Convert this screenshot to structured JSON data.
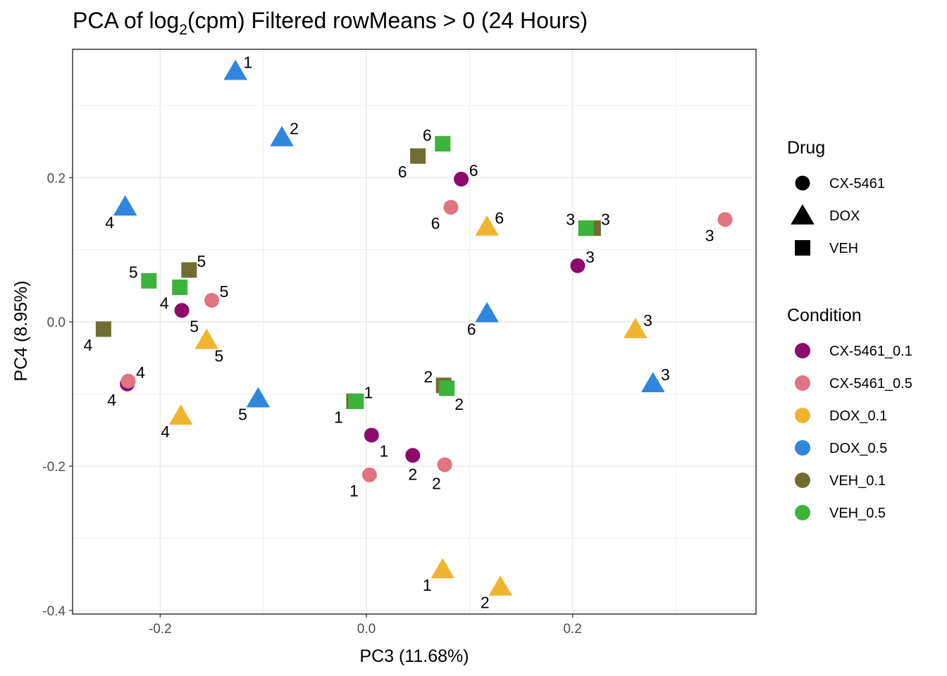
{
  "chart_data": {
    "type": "scatter",
    "title_main": "PCA of log",
    "title_sub": "2",
    "title_rest": "(cpm) Filtered rowMeans > 0 (24 Hours)",
    "xlabel": "PC3 (11.68%)",
    "ylabel": "PC4 (8.95%)",
    "xlim": [
      -0.285,
      0.378
    ],
    "ylim": [
      -0.405,
      0.378
    ],
    "x_ticks": [
      -0.2,
      0.0,
      0.2
    ],
    "x_tick_labels": [
      "-0.2",
      "0.0",
      "0.2"
    ],
    "y_ticks": [
      -0.4,
      -0.2,
      0.0,
      0.2
    ],
    "y_tick_labels": [
      "-0.4",
      "-0.2",
      "0.0",
      "0.2"
    ],
    "grid": true,
    "legend_placement": "right",
    "legend_drug": {
      "title": "Drug",
      "items": [
        {
          "label": "CX-5461",
          "shape": "circle"
        },
        {
          "label": "DOX",
          "shape": "triangle"
        },
        {
          "label": "VEH",
          "shape": "square"
        }
      ]
    },
    "legend_condition": {
      "title": "Condition",
      "items": [
        {
          "label": "CX-5461_0.1",
          "color": "#8B0A6B"
        },
        {
          "label": "CX-5461_0.5",
          "color": "#E07480"
        },
        {
          "label": "DOX_0.1",
          "color": "#F0B530"
        },
        {
          "label": "DOX_0.5",
          "color": "#2F86DC"
        },
        {
          "label": "VEH_0.1",
          "color": "#6E6E30"
        },
        {
          "label": "VEH_0.5",
          "color": "#3CB43C"
        }
      ]
    },
    "points": [
      {
        "x": -0.127,
        "y": 0.348,
        "shape": "triangle",
        "color": "#2F86DC",
        "label": "1",
        "lx": 0.012,
        "ly": 0.012
      },
      {
        "x": -0.082,
        "y": 0.256,
        "shape": "triangle",
        "color": "#2F86DC",
        "label": "2",
        "lx": 0.012,
        "ly": 0.012
      },
      {
        "x": -0.234,
        "y": 0.16,
        "shape": "triangle",
        "color": "#2F86DC",
        "label": "4",
        "lx": -0.015,
        "ly": -0.022
      },
      {
        "x": 0.117,
        "y": 0.012,
        "shape": "triangle",
        "color": "#2F86DC",
        "label": "6",
        "lx": -0.015,
        "ly": -0.022
      },
      {
        "x": 0.278,
        "y": -0.085,
        "shape": "triangle",
        "color": "#2F86DC",
        "label": "3",
        "lx": 0.012,
        "ly": 0.012
      },
      {
        "x": -0.105,
        "y": -0.106,
        "shape": "triangle",
        "color": "#2F86DC",
        "label": "5",
        "lx": -0.015,
        "ly": -0.022
      },
      {
        "x": 0.117,
        "y": 0.132,
        "shape": "triangle",
        "color": "#F0B530",
        "label": "6",
        "lx": 0.012,
        "ly": 0.012
      },
      {
        "x": 0.261,
        "y": -0.01,
        "shape": "triangle",
        "color": "#F0B530",
        "label": "3",
        "lx": 0.012,
        "ly": 0.012
      },
      {
        "x": -0.155,
        "y": -0.025,
        "shape": "triangle",
        "color": "#F0B530",
        "label": "5",
        "lx": 0.012,
        "ly": -0.022
      },
      {
        "x": -0.18,
        "y": -0.13,
        "shape": "triangle",
        "color": "#F0B530",
        "label": "4",
        "lx": -0.015,
        "ly": -0.022
      },
      {
        "x": 0.074,
        "y": -0.343,
        "shape": "triangle",
        "color": "#F0B530",
        "label": "1",
        "lx": -0.015,
        "ly": -0.022
      },
      {
        "x": 0.13,
        "y": -0.367,
        "shape": "triangle",
        "color": "#F0B530",
        "label": "2",
        "lx": -0.015,
        "ly": -0.022
      },
      {
        "x": 0.092,
        "y": 0.198,
        "shape": "circle",
        "color": "#8B0A6B",
        "label": "6",
        "lx": 0.012,
        "ly": 0.012
      },
      {
        "x": 0.205,
        "y": 0.078,
        "shape": "circle",
        "color": "#8B0A6B",
        "label": "3",
        "lx": 0.012,
        "ly": 0.012
      },
      {
        "x": -0.179,
        "y": 0.016,
        "shape": "circle",
        "color": "#8B0A6B",
        "label": "5",
        "lx": 0.012,
        "ly": -0.022
      },
      {
        "x": -0.232,
        "y": -0.086,
        "shape": "circle",
        "color": "#8B0A6B",
        "label": "4",
        "lx": -0.015,
        "ly": -0.022
      },
      {
        "x": 0.005,
        "y": -0.157,
        "shape": "circle",
        "color": "#8B0A6B",
        "label": "1",
        "lx": 0.012,
        "ly": -0.022
      },
      {
        "x": 0.045,
        "y": -0.185,
        "shape": "circle",
        "color": "#8B0A6B",
        "label": "2",
        "lx": 0.0,
        "ly": -0.026
      },
      {
        "x": 0.082,
        "y": 0.159,
        "shape": "circle",
        "color": "#E07480",
        "label": "6",
        "lx": -0.015,
        "ly": -0.022
      },
      {
        "x": 0.348,
        "y": 0.142,
        "shape": "circle",
        "color": "#E07480",
        "label": "3",
        "lx": -0.015,
        "ly": -0.022
      },
      {
        "x": -0.15,
        "y": 0.03,
        "shape": "circle",
        "color": "#E07480",
        "label": "5",
        "lx": 0.012,
        "ly": 0.012
      },
      {
        "x": -0.231,
        "y": -0.082,
        "shape": "circle",
        "color": "#E07480",
        "label": "4",
        "lx": 0.012,
        "ly": 0.012
      },
      {
        "x": 0.003,
        "y": -0.212,
        "shape": "circle",
        "color": "#E07480",
        "label": "1",
        "lx": -0.015,
        "ly": -0.022
      },
      {
        "x": 0.076,
        "y": -0.198,
        "shape": "circle",
        "color": "#E07480",
        "label": "2",
        "lx": -0.008,
        "ly": -0.026
      },
      {
        "x": 0.05,
        "y": 0.23,
        "shape": "square",
        "color": "#6E6E30",
        "label": "6",
        "lx": -0.015,
        "ly": -0.022
      },
      {
        "x": 0.22,
        "y": 0.13,
        "shape": "square",
        "color": "#6E6E30",
        "label": "3",
        "lx": 0.012,
        "ly": 0.012
      },
      {
        "x": -0.172,
        "y": 0.072,
        "shape": "square",
        "color": "#6E6E30",
        "label": "5",
        "lx": 0.012,
        "ly": 0.012
      },
      {
        "x": -0.255,
        "y": -0.01,
        "shape": "square",
        "color": "#6E6E30",
        "label": "4",
        "lx": -0.015,
        "ly": -0.022
      },
      {
        "x": -0.012,
        "y": -0.11,
        "shape": "square",
        "color": "#6E6E30",
        "label": "1",
        "lx": -0.015,
        "ly": -0.022
      },
      {
        "x": 0.075,
        "y": -0.088,
        "shape": "square",
        "color": "#6E6E30",
        "label": "2",
        "lx": -0.015,
        "ly": 0.012
      },
      {
        "x": 0.074,
        "y": 0.247,
        "shape": "square",
        "color": "#3CB43C",
        "label": "6",
        "lx": -0.015,
        "ly": 0.012
      },
      {
        "x": 0.213,
        "y": 0.13,
        "shape": "square",
        "color": "#3CB43C",
        "label": "3",
        "lx": -0.015,
        "ly": 0.012
      },
      {
        "x": -0.211,
        "y": 0.057,
        "shape": "square",
        "color": "#3CB43C",
        "label": "5",
        "lx": -0.015,
        "ly": 0.012
      },
      {
        "x": -0.181,
        "y": 0.048,
        "shape": "square",
        "color": "#3CB43C",
        "label": "4",
        "lx": -0.015,
        "ly": -0.022
      },
      {
        "x": -0.01,
        "y": -0.11,
        "shape": "square",
        "color": "#3CB43C",
        "label": "1",
        "lx": 0.012,
        "ly": 0.012
      },
      {
        "x": 0.078,
        "y": -0.092,
        "shape": "square",
        "color": "#3CB43C",
        "label": "2",
        "lx": 0.012,
        "ly": -0.022
      }
    ]
  }
}
